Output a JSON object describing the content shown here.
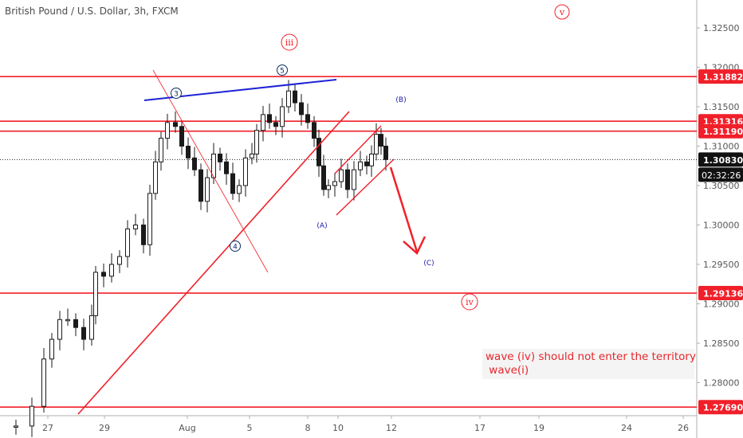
{
  "chart_title": "British Pound / U.S. Dollar, 3h, FXCM",
  "chart_data": {
    "type": "candlestick",
    "title": "British Pound / U.S. Dollar, 3h, FXCM",
    "symbol": "GBPUSD",
    "timeframe": "3h",
    "source": "FXCM",
    "last_price": "1.30830",
    "countdown": "02:32:26",
    "ylim": [
      1.2765,
      1.337
    ],
    "y_ticks": [
      "1.32500",
      "1.32000",
      "1.31500",
      "1.31000",
      "1.30500",
      "1.30000",
      "1.29500",
      "1.29000",
      "1.28500",
      "1.28000"
    ],
    "x_ticks": [
      "27",
      "29",
      "Aug",
      "5",
      "8",
      "10",
      "12",
      "17",
      "19",
      "24",
      "26"
    ],
    "horizontal_levels": [
      "1.31882",
      "1.31316",
      "1.31190",
      "1.29136",
      "1.27690"
    ],
    "wave_labels": [
      {
        "text": "v",
        "style": "circle-red"
      },
      {
        "text": "iii",
        "style": "circle-red"
      },
      {
        "text": "iv",
        "style": "circle-red"
      },
      {
        "text": "5",
        "style": "circle-blue"
      },
      {
        "text": "3",
        "style": "circle-blue"
      },
      {
        "text": "4",
        "style": "circle-blue"
      },
      {
        "text": "(A)",
        "style": "plain-blue"
      },
      {
        "text": "(B)",
        "style": "plain-blue"
      },
      {
        "text": "(C)",
        "style": "plain-blue"
      }
    ],
    "annotation": [
      "wave (iv) should not enter the territory",
      " wave(i)"
    ],
    "colors": {
      "level": "#f0202a",
      "trend_blue": "#1f22d6",
      "candle": "#1a1a1a",
      "price_tag": "#111111"
    }
  }
}
